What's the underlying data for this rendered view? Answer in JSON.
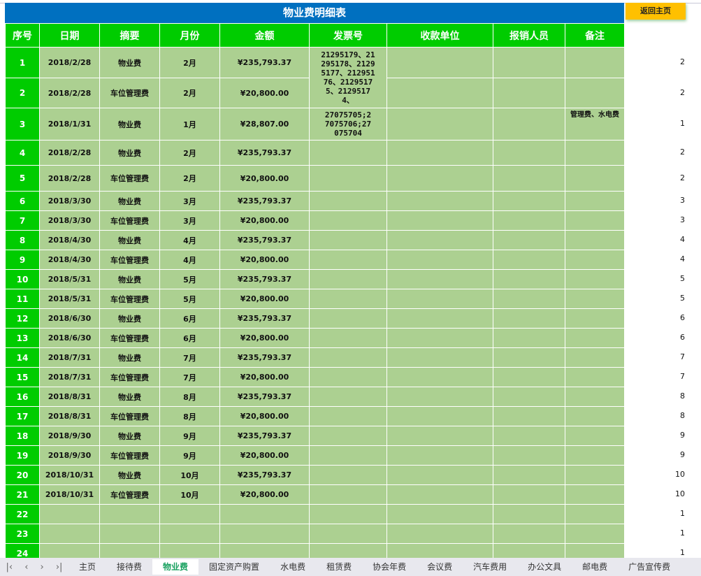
{
  "title": "物业费明细表",
  "home_button": "返回主页",
  "headers": [
    "序号",
    "日期",
    "摘要",
    "月份",
    "金额",
    "发票号",
    "收款单位",
    "报销人员",
    "备注"
  ],
  "invoices": {
    "rows_1_2": "21295179、21295178、21295177、21295176、21295175、21295174、",
    "row_3": "27075705;27075706;27075704"
  },
  "rows": [
    {
      "seq": "1",
      "date": "2018/2/28",
      "summary": "物业费",
      "month": "2月",
      "amount": "¥235,793.37",
      "note": "",
      "side": "2"
    },
    {
      "seq": "2",
      "date": "2018/2/28",
      "summary": "车位管理费",
      "month": "2月",
      "amount": "¥20,800.00",
      "note": "",
      "side": "2"
    },
    {
      "seq": "3",
      "date": "2018/1/31",
      "summary": "物业费",
      "month": "1月",
      "amount": "¥28,807.00",
      "note": "管理费、水电费",
      "side": "1"
    },
    {
      "seq": "4",
      "date": "2018/2/28",
      "summary": "物业费",
      "month": "2月",
      "amount": "¥235,793.37",
      "note": "",
      "side": "2"
    },
    {
      "seq": "5",
      "date": "2018/2/28",
      "summary": "车位管理费",
      "month": "2月",
      "amount": "¥20,800.00",
      "note": "",
      "side": "2"
    },
    {
      "seq": "6",
      "date": "2018/3/30",
      "summary": "物业费",
      "month": "3月",
      "amount": "¥235,793.37",
      "note": "",
      "side": "3"
    },
    {
      "seq": "7",
      "date": "2018/3/30",
      "summary": "车位管理费",
      "month": "3月",
      "amount": "¥20,800.00",
      "note": "",
      "side": "3"
    },
    {
      "seq": "8",
      "date": "2018/4/30",
      "summary": "物业费",
      "month": "4月",
      "amount": "¥235,793.37",
      "note": "",
      "side": "4"
    },
    {
      "seq": "9",
      "date": "2018/4/30",
      "summary": "车位管理费",
      "month": "4月",
      "amount": "¥20,800.00",
      "note": "",
      "side": "4"
    },
    {
      "seq": "10",
      "date": "2018/5/31",
      "summary": "物业费",
      "month": "5月",
      "amount": "¥235,793.37",
      "note": "",
      "side": "5"
    },
    {
      "seq": "11",
      "date": "2018/5/31",
      "summary": "车位管理费",
      "month": "5月",
      "amount": "¥20,800.00",
      "note": "",
      "side": "5"
    },
    {
      "seq": "12",
      "date": "2018/6/30",
      "summary": "物业费",
      "month": "6月",
      "amount": "¥235,793.37",
      "note": "",
      "side": "6"
    },
    {
      "seq": "13",
      "date": "2018/6/30",
      "summary": "车位管理费",
      "month": "6月",
      "amount": "¥20,800.00",
      "note": "",
      "side": "6"
    },
    {
      "seq": "14",
      "date": "2018/7/31",
      "summary": "物业费",
      "month": "7月",
      "amount": "¥235,793.37",
      "note": "",
      "side": "7"
    },
    {
      "seq": "15",
      "date": "2018/7/31",
      "summary": "车位管理费",
      "month": "7月",
      "amount": "¥20,800.00",
      "note": "",
      "side": "7"
    },
    {
      "seq": "16",
      "date": "2018/8/31",
      "summary": "物业费",
      "month": "8月",
      "amount": "¥235,793.37",
      "note": "",
      "side": "8"
    },
    {
      "seq": "17",
      "date": "2018/8/31",
      "summary": "车位管理费",
      "month": "8月",
      "amount": "¥20,800.00",
      "note": "",
      "side": "8"
    },
    {
      "seq": "18",
      "date": "2018/9/30",
      "summary": "物业费",
      "month": "9月",
      "amount": "¥235,793.37",
      "note": "",
      "side": "9"
    },
    {
      "seq": "19",
      "date": "2018/9/30",
      "summary": "车位管理费",
      "month": "9月",
      "amount": "¥20,800.00",
      "note": "",
      "side": "9"
    },
    {
      "seq": "20",
      "date": "2018/10/31",
      "summary": "物业费",
      "month": "10月",
      "amount": "¥235,793.37",
      "note": "",
      "side": "10"
    },
    {
      "seq": "21",
      "date": "2018/10/31",
      "summary": "车位管理费",
      "month": "10月",
      "amount": "¥20,800.00",
      "note": "",
      "side": "10"
    },
    {
      "seq": "22",
      "date": "",
      "summary": "",
      "month": "",
      "amount": "",
      "note": "",
      "side": "1"
    },
    {
      "seq": "23",
      "date": "",
      "summary": "",
      "month": "",
      "amount": "",
      "note": "",
      "side": "1"
    },
    {
      "seq": "24",
      "date": "",
      "summary": "",
      "month": "",
      "amount": "",
      "note": "",
      "side": "1"
    }
  ],
  "sheet_tabs": [
    "主页",
    "接待费",
    "物业费",
    "固定资产购置",
    "水电费",
    "租赁费",
    "协会年费",
    "会议费",
    "汽车费用",
    "办公文具",
    "邮电费",
    "广告宣传费"
  ],
  "active_tab": "物业费",
  "colors": {
    "title_bg": "#0070c0",
    "header_bg": "#00cc00",
    "cell_bg": "#acd091",
    "button_bg": "#ffc000"
  }
}
